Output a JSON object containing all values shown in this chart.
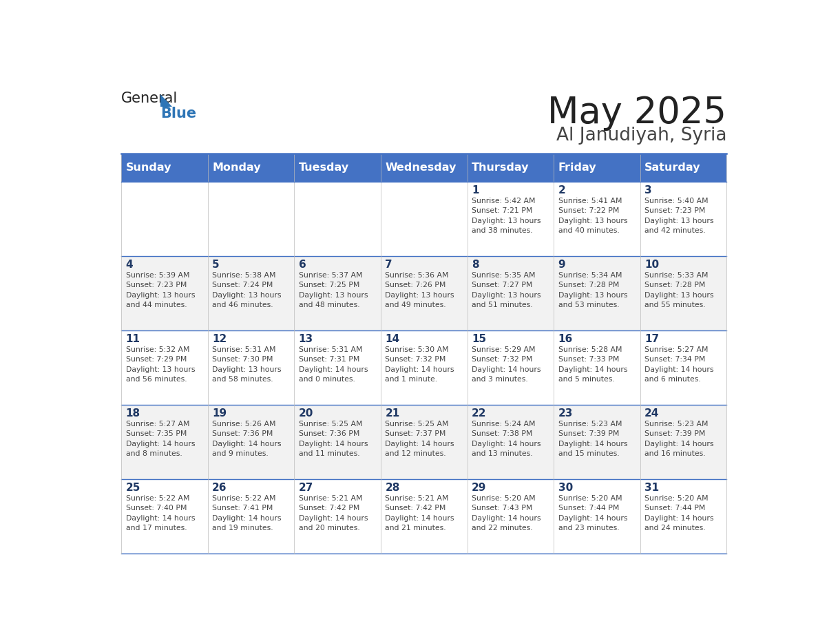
{
  "title": "May 2025",
  "subtitle": "Al Janudiyah, Syria",
  "days_of_week": [
    "Sunday",
    "Monday",
    "Tuesday",
    "Wednesday",
    "Thursday",
    "Friday",
    "Saturday"
  ],
  "header_bg": "#4472C4",
  "header_text": "#FFFFFF",
  "cell_bg_light": "#FFFFFF",
  "cell_bg_alt": "#F2F2F2",
  "day_num_color": "#1F3864",
  "cell_text_color": "#444444",
  "grid_line_color": "#4472C4",
  "title_color": "#222222",
  "subtitle_color": "#444444",
  "logo_general_color": "#222222",
  "logo_blue_color": "#2E75B6",
  "weeks": [
    [
      {
        "day": null,
        "info": null
      },
      {
        "day": null,
        "info": null
      },
      {
        "day": null,
        "info": null
      },
      {
        "day": null,
        "info": null
      },
      {
        "day": 1,
        "info": "Sunrise: 5:42 AM\nSunset: 7:21 PM\nDaylight: 13 hours\nand 38 minutes."
      },
      {
        "day": 2,
        "info": "Sunrise: 5:41 AM\nSunset: 7:22 PM\nDaylight: 13 hours\nand 40 minutes."
      },
      {
        "day": 3,
        "info": "Sunrise: 5:40 AM\nSunset: 7:23 PM\nDaylight: 13 hours\nand 42 minutes."
      }
    ],
    [
      {
        "day": 4,
        "info": "Sunrise: 5:39 AM\nSunset: 7:23 PM\nDaylight: 13 hours\nand 44 minutes."
      },
      {
        "day": 5,
        "info": "Sunrise: 5:38 AM\nSunset: 7:24 PM\nDaylight: 13 hours\nand 46 minutes."
      },
      {
        "day": 6,
        "info": "Sunrise: 5:37 AM\nSunset: 7:25 PM\nDaylight: 13 hours\nand 48 minutes."
      },
      {
        "day": 7,
        "info": "Sunrise: 5:36 AM\nSunset: 7:26 PM\nDaylight: 13 hours\nand 49 minutes."
      },
      {
        "day": 8,
        "info": "Sunrise: 5:35 AM\nSunset: 7:27 PM\nDaylight: 13 hours\nand 51 minutes."
      },
      {
        "day": 9,
        "info": "Sunrise: 5:34 AM\nSunset: 7:28 PM\nDaylight: 13 hours\nand 53 minutes."
      },
      {
        "day": 10,
        "info": "Sunrise: 5:33 AM\nSunset: 7:28 PM\nDaylight: 13 hours\nand 55 minutes."
      }
    ],
    [
      {
        "day": 11,
        "info": "Sunrise: 5:32 AM\nSunset: 7:29 PM\nDaylight: 13 hours\nand 56 minutes."
      },
      {
        "day": 12,
        "info": "Sunrise: 5:31 AM\nSunset: 7:30 PM\nDaylight: 13 hours\nand 58 minutes."
      },
      {
        "day": 13,
        "info": "Sunrise: 5:31 AM\nSunset: 7:31 PM\nDaylight: 14 hours\nand 0 minutes."
      },
      {
        "day": 14,
        "info": "Sunrise: 5:30 AM\nSunset: 7:32 PM\nDaylight: 14 hours\nand 1 minute."
      },
      {
        "day": 15,
        "info": "Sunrise: 5:29 AM\nSunset: 7:32 PM\nDaylight: 14 hours\nand 3 minutes."
      },
      {
        "day": 16,
        "info": "Sunrise: 5:28 AM\nSunset: 7:33 PM\nDaylight: 14 hours\nand 5 minutes."
      },
      {
        "day": 17,
        "info": "Sunrise: 5:27 AM\nSunset: 7:34 PM\nDaylight: 14 hours\nand 6 minutes."
      }
    ],
    [
      {
        "day": 18,
        "info": "Sunrise: 5:27 AM\nSunset: 7:35 PM\nDaylight: 14 hours\nand 8 minutes."
      },
      {
        "day": 19,
        "info": "Sunrise: 5:26 AM\nSunset: 7:36 PM\nDaylight: 14 hours\nand 9 minutes."
      },
      {
        "day": 20,
        "info": "Sunrise: 5:25 AM\nSunset: 7:36 PM\nDaylight: 14 hours\nand 11 minutes."
      },
      {
        "day": 21,
        "info": "Sunrise: 5:25 AM\nSunset: 7:37 PM\nDaylight: 14 hours\nand 12 minutes."
      },
      {
        "day": 22,
        "info": "Sunrise: 5:24 AM\nSunset: 7:38 PM\nDaylight: 14 hours\nand 13 minutes."
      },
      {
        "day": 23,
        "info": "Sunrise: 5:23 AM\nSunset: 7:39 PM\nDaylight: 14 hours\nand 15 minutes."
      },
      {
        "day": 24,
        "info": "Sunrise: 5:23 AM\nSunset: 7:39 PM\nDaylight: 14 hours\nand 16 minutes."
      }
    ],
    [
      {
        "day": 25,
        "info": "Sunrise: 5:22 AM\nSunset: 7:40 PM\nDaylight: 14 hours\nand 17 minutes."
      },
      {
        "day": 26,
        "info": "Sunrise: 5:22 AM\nSunset: 7:41 PM\nDaylight: 14 hours\nand 19 minutes."
      },
      {
        "day": 27,
        "info": "Sunrise: 5:21 AM\nSunset: 7:42 PM\nDaylight: 14 hours\nand 20 minutes."
      },
      {
        "day": 28,
        "info": "Sunrise: 5:21 AM\nSunset: 7:42 PM\nDaylight: 14 hours\nand 21 minutes."
      },
      {
        "day": 29,
        "info": "Sunrise: 5:20 AM\nSunset: 7:43 PM\nDaylight: 14 hours\nand 22 minutes."
      },
      {
        "day": 30,
        "info": "Sunrise: 5:20 AM\nSunset: 7:44 PM\nDaylight: 14 hours\nand 23 minutes."
      },
      {
        "day": 31,
        "info": "Sunrise: 5:20 AM\nSunset: 7:44 PM\nDaylight: 14 hours\nand 24 minutes."
      }
    ]
  ]
}
